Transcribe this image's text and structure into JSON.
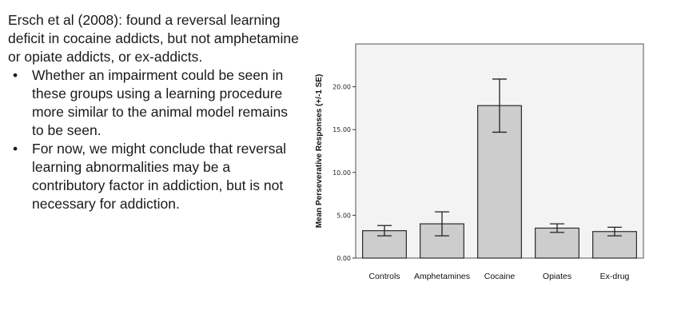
{
  "slide": {
    "intro": "Ersch et al (2008): found a reversal learning deficit in cocaine addicts, but not amphetamine or opiate addicts, or ex-addicts.",
    "bullets": [
      "Whether an impairment could be seen in these groups using a learning procedure more similar to the animal model remains to be seen.",
      "For now, we might conclude that reversal learning abnormalities may be a contributory factor in addiction, but is not necessary for addiction."
    ],
    "bullet_glyph": "•"
  },
  "chart_data": {
    "type": "bar",
    "title": "",
    "xlabel": "",
    "ylabel": "Mean Perseverative Responses (+/-1 SE)",
    "categories": [
      "Controls",
      "Amphetamines",
      "Cocaine",
      "Opiates",
      "Ex-drug"
    ],
    "values": [
      3.2,
      4.0,
      17.8,
      3.5,
      3.1
    ],
    "error_low": [
      2.6,
      2.6,
      14.7,
      3.0,
      2.6
    ],
    "error_high": [
      3.8,
      5.4,
      20.9,
      4.0,
      3.6
    ],
    "ylim": [
      0,
      25
    ],
    "yticks": [
      0,
      5,
      10,
      15,
      20
    ],
    "ytick_labels": [
      "0.00",
      "5.00",
      "10.00",
      "15.00",
      "20.00"
    ],
    "grid": false,
    "colors": {
      "bar": "#cdcdcd",
      "bar_edge": "#2a2a2a",
      "plot_bg": "#f3f3f3",
      "frame": "#555555"
    }
  }
}
